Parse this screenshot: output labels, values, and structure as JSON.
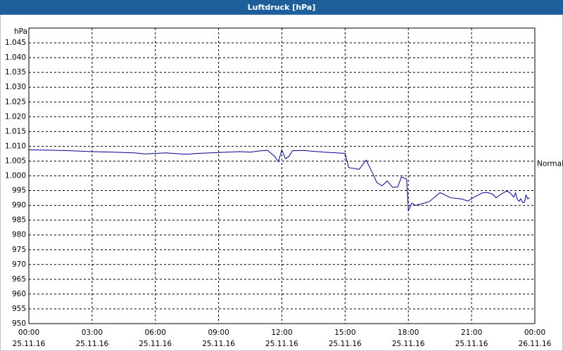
{
  "chart_data": {
    "type": "line",
    "title": "Luftdruck [hPa]",
    "y_unit": "hPa",
    "color": "#00008b",
    "grid": true,
    "x": [
      "25.11.16 00:00",
      "25.11.16 01:00",
      "25.11.16 02:00",
      "25.11.16 03:00",
      "25.11.16 04:00",
      "25.11.16 05:00",
      "25.11.16 05:30",
      "25.11.16 06:00",
      "25.11.16 06:30",
      "25.11.16 07:00",
      "25.11.16 07:30",
      "25.11.16 08:00",
      "25.11.16 09:00",
      "25.11.16 10:00",
      "25.11.16 10:30",
      "25.11.16 11:00",
      "25.11.16 11:20",
      "25.11.16 11:40",
      "25.11.16 11:50",
      "25.11.16 12:00",
      "25.11.16 12:10",
      "25.11.16 12:20",
      "25.11.16 12:30",
      "25.11.16 13:00",
      "25.11.16 14:00",
      "25.11.16 15:00",
      "25.11.16 15:10",
      "25.11.16 15:40",
      "25.11.16 16:00",
      "25.11.16 16:20",
      "25.11.16 16:30",
      "25.11.16 16:45",
      "25.11.16 17:00",
      "25.11.16 17:15",
      "25.11.16 17:30",
      "25.11.16 17:40",
      "25.11.16 17:55",
      "25.11.16 18:00",
      "25.11.16 18:10",
      "25.11.16 18:20",
      "25.11.16 18:40",
      "25.11.16 19:00",
      "25.11.16 19:30",
      "25.11.16 19:40",
      "25.11.16 20:00",
      "25.11.16 20:30",
      "25.11.16 20:50",
      "25.11.16 21:10",
      "25.11.16 21:30",
      "25.11.16 21:45",
      "25.11.16 22:00",
      "25.11.16 22:10",
      "25.11.16 22:20",
      "25.11.16 22:40",
      "25.11.16 22:50",
      "25.11.16 23:00",
      "25.11.16 23:05",
      "25.11.16 23:10",
      "25.11.16 23:15",
      "25.11.16 23:20",
      "25.11.16 23:25",
      "25.11.16 23:30",
      "25.11.16 23:35",
      "25.11.16 23:40",
      "25.11.16 23:45"
    ],
    "values": [
      1008.8,
      1008.7,
      1008.5,
      1008.2,
      1008.0,
      1007.8,
      1007.4,
      1007.6,
      1007.8,
      1007.5,
      1007.3,
      1007.6,
      1007.9,
      1008.2,
      1008.0,
      1008.5,
      1008.6,
      1006.5,
      1004.8,
      1008.8,
      1005.8,
      1006.5,
      1008.5,
      1008.6,
      1008.0,
      1007.6,
      1002.8,
      1002.2,
      1005.3,
      1000.5,
      997.8,
      996.6,
      998.3,
      996.1,
      996.3,
      999.6,
      998.9,
      988.2,
      990.8,
      990.0,
      990.6,
      991.3,
      994.3,
      993.8,
      992.6,
      992.2,
      991.5,
      993.0,
      994.2,
      994.4,
      993.8,
      992.6,
      993.5,
      994.9,
      994.2,
      992.8,
      994.2,
      992.1,
      991.4,
      992.2,
      991.0,
      991.0,
      993.5,
      992.2,
      992.6
    ],
    "xlim": [
      "25.11.16 00:00",
      "26.11.16 00:00"
    ],
    "xticks": [
      {
        "value": "25.11.16 00:00",
        "label": "00:00",
        "date": "25.11.16"
      },
      {
        "value": "25.11.16 03:00",
        "label": "03:00",
        "date": "25.11.16"
      },
      {
        "value": "25.11.16 06:00",
        "label": "06:00",
        "date": "25.11.16"
      },
      {
        "value": "25.11.16 09:00",
        "label": "09:00",
        "date": "25.11.16"
      },
      {
        "value": "25.11.16 12:00",
        "label": "12:00",
        "date": "25.11.16"
      },
      {
        "value": "25.11.16 15:00",
        "label": "15:00",
        "date": "25.11.16"
      },
      {
        "value": "25.11.16 18:00",
        "label": "18:00",
        "date": "25.11.16"
      },
      {
        "value": "25.11.16 21:00",
        "label": "21:00",
        "date": "25.11.16"
      },
      {
        "value": "26.11.16 00:00",
        "label": "00:00",
        "date": "26.11.16"
      }
    ],
    "ylim": [
      950,
      1050
    ],
    "yticks": [
      950,
      955,
      960,
      965,
      970,
      975,
      980,
      985,
      990,
      995,
      {
        "value": 1000,
        "label": "1.000"
      },
      {
        "value": 1005,
        "label": "1.005"
      },
      {
        "value": 1010,
        "label": "1.010"
      },
      {
        "value": 1015,
        "label": "1.015"
      },
      {
        "value": 1020,
        "label": "1.020"
      },
      {
        "value": 1025,
        "label": "1.025"
      },
      {
        "value": 1030,
        "label": "1.030"
      },
      {
        "value": 1035,
        "label": "1.035"
      },
      {
        "value": 1040,
        "label": "1.040"
      },
      {
        "value": 1045,
        "label": "1.045"
      }
    ],
    "annotation": {
      "text": "Normal",
      "value": 1004
    }
  }
}
